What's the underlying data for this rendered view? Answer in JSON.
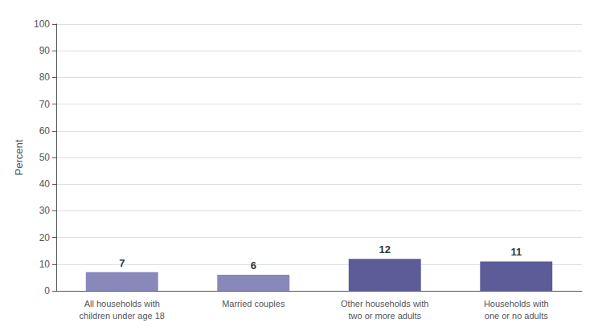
{
  "chart_data": {
    "type": "bar",
    "categories": [
      "All households with\nchildren under age 18",
      "Married couples",
      "Other households with\ntwo or more adults",
      "Households with\none or no adults"
    ],
    "values": [
      7,
      6,
      12,
      11
    ],
    "colors": [
      "#8888bb",
      "#8888bb",
      "#5c5c99",
      "#5c5c99"
    ],
    "ylabel": "Percent",
    "ylim": [
      0,
      100
    ],
    "yticks": [
      0,
      10,
      20,
      30,
      40,
      50,
      60,
      70,
      80,
      90,
      100
    ],
    "grid": true,
    "data_labels": true
  }
}
